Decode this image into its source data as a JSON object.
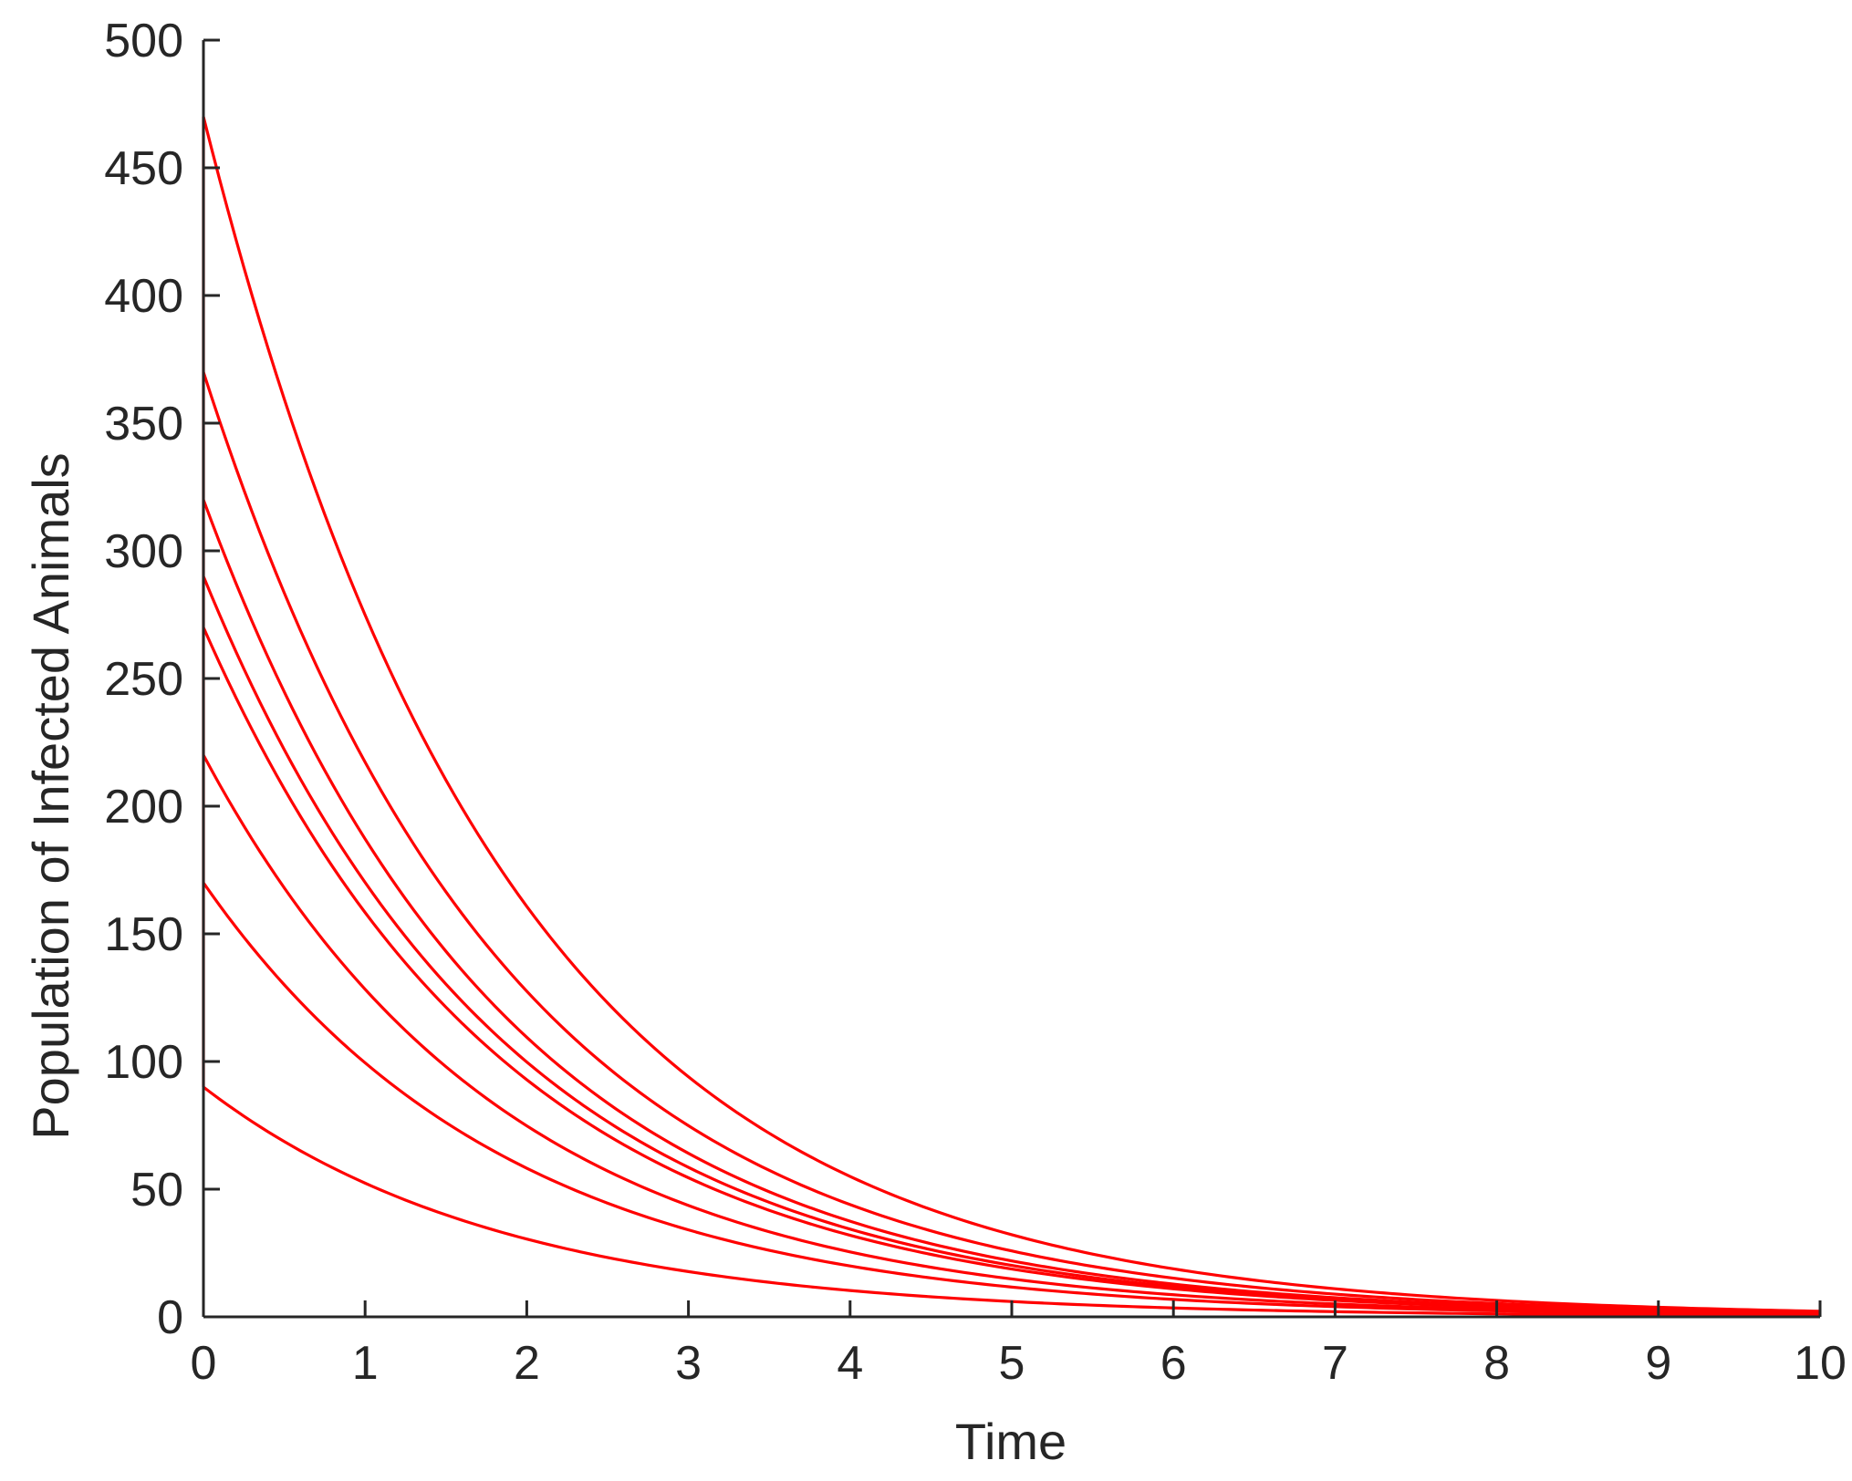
{
  "chart_data": {
    "type": "line",
    "title": "",
    "xlabel": "Time",
    "ylabel": "Population of Infected Animals",
    "xlim": [
      0,
      10
    ],
    "ylim": [
      0,
      500
    ],
    "xticks": [
      0,
      1,
      2,
      3,
      4,
      5,
      6,
      7,
      8,
      9,
      10
    ],
    "yticks": [
      0,
      50,
      100,
      150,
      200,
      250,
      300,
      350,
      400,
      450,
      500
    ],
    "xtick_labels": [
      "0",
      "1",
      "2",
      "3",
      "4",
      "5",
      "6",
      "7",
      "8",
      "9",
      "10"
    ],
    "ytick_labels": [
      "0",
      "50",
      "100",
      "150",
      "200",
      "250",
      "300",
      "350",
      "400",
      "450",
      "500"
    ],
    "grid": false,
    "legend": "none",
    "line_color": "#ff0000",
    "x": [
      0,
      0.5,
      1,
      1.5,
      2,
      2.5,
      3,
      3.5,
      4,
      4.5,
      5,
      5.5,
      6,
      6.5,
      7,
      7.5,
      8,
      8.5,
      9,
      9.5,
      10
    ],
    "series": [
      {
        "values": [
          470,
          359.8,
          275.5,
          210.9,
          161.4,
          123.6,
          94.6,
          72.4,
          55.4,
          42.5,
          32.5,
          24.9,
          19.0,
          14.6,
          11.2,
          8.5,
          6.5,
          5.0,
          3.8,
          2.9,
          2.2
        ]
      },
      {
        "values": [
          370,
          283.3,
          216.9,
          166.0,
          127.1,
          97.3,
          74.5,
          57.0,
          43.6,
          33.4,
          25.6,
          19.6,
          15.0,
          11.5,
          8.8,
          6.7,
          5.1,
          3.9,
          3.0,
          2.3,
          1.8
        ]
      },
      {
        "values": [
          320,
          245.0,
          187.6,
          143.6,
          109.9,
          84.2,
          64.4,
          49.3,
          37.8,
          28.9,
          22.1,
          16.9,
          13.0,
          9.9,
          7.6,
          5.8,
          4.5,
          3.4,
          2.6,
          2.0,
          1.5
        ]
      },
      {
        "values": [
          290,
          222.0,
          170.0,
          130.1,
          99.6,
          76.3,
          58.4,
          44.7,
          34.2,
          26.2,
          20.1,
          15.4,
          11.8,
          9.0,
          6.9,
          5.3,
          4.0,
          3.1,
          2.4,
          1.8,
          1.4
        ]
      },
      {
        "values": [
          270,
          206.7,
          158.3,
          121.2,
          92.8,
          71.0,
          54.4,
          41.6,
          31.9,
          24.4,
          18.7,
          14.3,
          10.9,
          8.4,
          6.4,
          4.9,
          3.8,
          2.9,
          2.2,
          1.7,
          1.3
        ]
      },
      {
        "values": [
          220,
          168.4,
          129.0,
          98.7,
          75.6,
          57.9,
          44.3,
          33.9,
          26.0,
          19.9,
          15.2,
          11.6,
          8.9,
          6.8,
          5.2,
          4.0,
          3.1,
          2.4,
          1.8,
          1.4,
          1.0
        ]
      },
      {
        "values": [
          170,
          130.2,
          99.6,
          76.3,
          58.4,
          44.7,
          34.2,
          26.2,
          20.1,
          15.4,
          11.8,
          9.0,
          6.9,
          5.3,
          4.0,
          3.1,
          2.4,
          1.8,
          1.4,
          1.1,
          0.8
        ]
      },
      {
        "values": [
          90,
          68.9,
          52.8,
          40.4,
          30.9,
          23.7,
          18.1,
          13.9,
          10.6,
          8.1,
          6.2,
          4.8,
          3.7,
          2.8,
          2.1,
          1.6,
          1.3,
          1.0,
          0.7,
          0.6,
          0.4
        ]
      }
    ]
  }
}
